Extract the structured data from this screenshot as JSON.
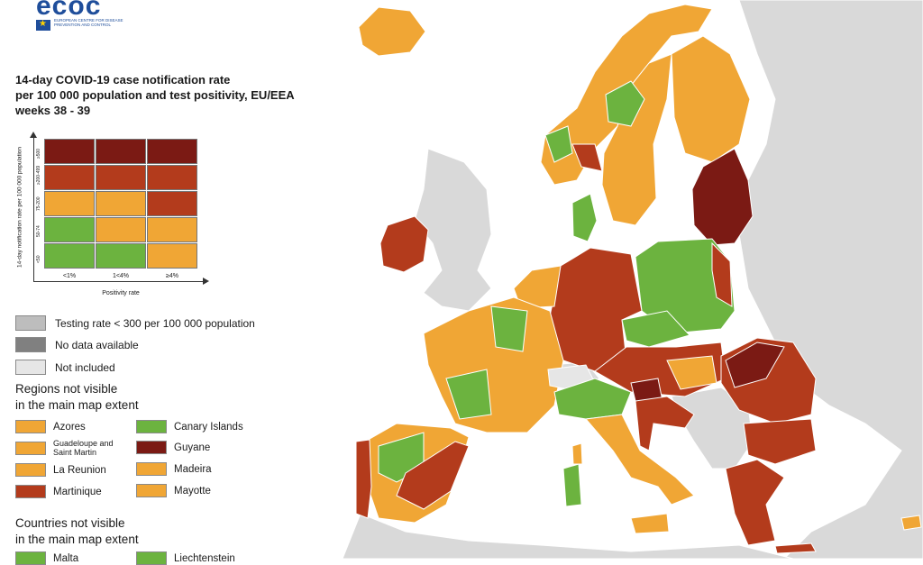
{
  "logo": {
    "word": "ecoc",
    "text": "European Centre for Disease Prevention and Control"
  },
  "title": {
    "line1": "14-day COVID-19 case notification rate",
    "line2": "per 100 000 population and test positivity, EU/EEA",
    "line3": "weeks 38 - 39"
  },
  "matrix": {
    "y_axis_label": "14-day notification rate per 100 000 population",
    "x_axis_label": "Positivity rate",
    "rows": [
      "≥500",
      "≥200-499",
      "75-200",
      "50-74",
      "<50"
    ],
    "cols": [
      "<1%",
      "1<4%",
      "≥4%"
    ],
    "colors": [
      [
        "#7b1a14",
        "#7b1a14",
        "#7b1a14"
      ],
      [
        "#b33b1c",
        "#b33b1c",
        "#b33b1c"
      ],
      [
        "#f0a635",
        "#f0a635",
        "#b33b1c"
      ],
      [
        "#6cb33f",
        "#f0a635",
        "#f0a635"
      ],
      [
        "#6cb33f",
        "#6cb33f",
        "#f0a635"
      ]
    ]
  },
  "legend": [
    {
      "label": "Testing rate < 300 per 100 000 population",
      "color": "#bdbdbd"
    },
    {
      "label": "No data available",
      "color": "#808080"
    },
    {
      "label": "Not included",
      "color": "#e6e6e6"
    }
  ],
  "regions_heading": {
    "line1": "Regions not visible",
    "line2": "in the main map extent"
  },
  "regions": [
    {
      "label": "Azores",
      "color": "#f0a635"
    },
    {
      "label": "Canary Islands",
      "color": "#6cb33f"
    },
    {
      "label": "Guadeloupe and Saint Martin",
      "color": "#f0a635"
    },
    {
      "label": "Guyane",
      "color": "#7b1a14"
    },
    {
      "label": "La Reunion",
      "color": "#f0a635"
    },
    {
      "label": "Madeira",
      "color": "#f0a635"
    },
    {
      "label": "Martinique",
      "color": "#b33b1c"
    },
    {
      "label": "Mayotte",
      "color": "#f0a635"
    }
  ],
  "countries_heading": {
    "line1": "Countries not visible",
    "line2": "in the main map extent"
  },
  "countries": [
    {
      "label": "Malta",
      "color": "#6cb33f"
    },
    {
      "label": "Liechtenstein",
      "color": "#6cb33f"
    }
  ],
  "colors": {
    "sea": "#ffffff",
    "non_eu_land": "#d9d9d9",
    "green": "#6cb33f",
    "orange": "#f0a635",
    "red": "#b33b1c",
    "dark_red": "#7b1a14",
    "grey": "#bdbdbd"
  }
}
